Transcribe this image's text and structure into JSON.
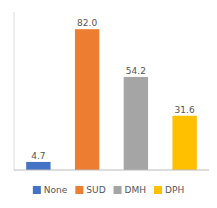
{
  "chart_data": {
    "type": "bar",
    "categories": [
      "None",
      "SUD",
      "DMH",
      "DPH"
    ],
    "values": [
      4.7,
      82.0,
      54.2,
      31.6
    ],
    "value_labels": [
      "4.7",
      "82.0",
      "54.2",
      "31.6"
    ],
    "colors": [
      "#4472C4",
      "#ED7D31",
      "#A5A5A5",
      "#FFC000"
    ],
    "ylim": [
      0,
      92
    ],
    "data_labels": true,
    "tick_labels": false,
    "grid": false,
    "legend": "bottom"
  }
}
